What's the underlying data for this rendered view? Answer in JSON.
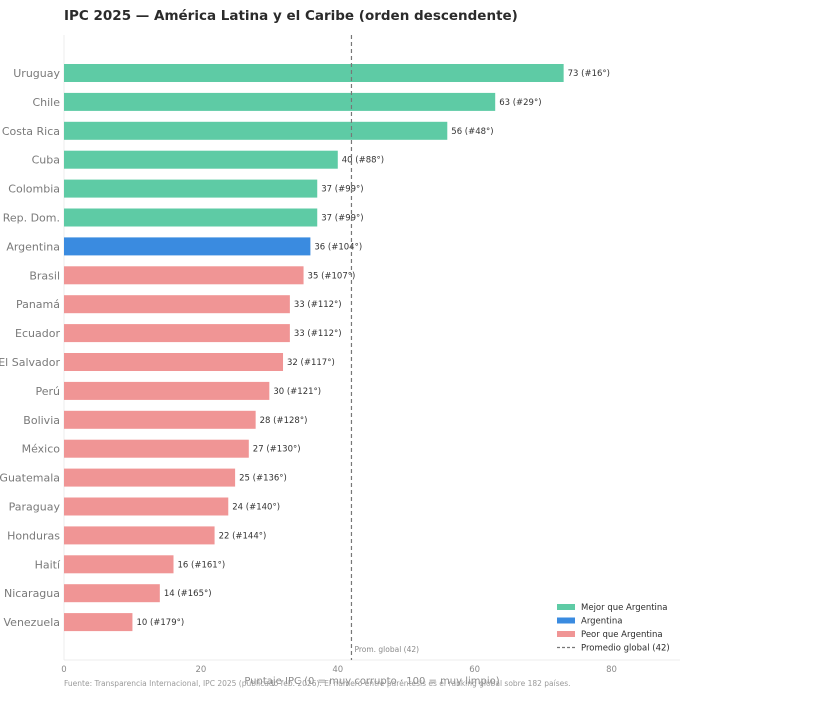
{
  "chart_data": {
    "type": "bar",
    "orientation": "horizontal",
    "title": "IPC 2025 — América Latina y el Caribe (orden descendente)",
    "xlabel": "Puntaje IPC (0 = muy corrupto · 100 = muy limpio)",
    "ylabel": "",
    "xlim": [
      0,
      90
    ],
    "xticks": [
      0,
      20,
      40,
      60,
      80
    ],
    "grid": false,
    "categories": [
      "Uruguay",
      "Chile",
      "Costa Rica",
      "Cuba",
      "Colombia",
      "Rep. Dom.",
      "Argentina",
      "Brasil",
      "Panamá",
      "Ecuador",
      "El Salvador",
      "Perú",
      "Bolivia",
      "México",
      "Guatemala",
      "Paraguay",
      "Honduras",
      "Haití",
      "Nicaragua",
      "Venezuela"
    ],
    "values": [
      73,
      63,
      56,
      40,
      37,
      37,
      36,
      35,
      33,
      33,
      32,
      30,
      28,
      27,
      25,
      24,
      22,
      16,
      14,
      10
    ],
    "ranks": [
      16,
      29,
      48,
      88,
      99,
      99,
      104,
      107,
      112,
      112,
      117,
      121,
      128,
      130,
      136,
      140,
      144,
      161,
      165,
      179
    ],
    "groups": [
      "better",
      "better",
      "better",
      "better",
      "better",
      "better",
      "argentina",
      "worse",
      "worse",
      "worse",
      "worse",
      "worse",
      "worse",
      "worse",
      "worse",
      "worse",
      "worse",
      "worse",
      "worse",
      "worse"
    ],
    "colors": {
      "better": "#5ecba5",
      "argentina": "#3a8be0",
      "worse": "#f09595",
      "reference_line": "#777777"
    },
    "reference_line": {
      "value": 42,
      "label": "Prom. global (42)",
      "style": "dashed"
    },
    "legend": {
      "position": "bottom-right",
      "entries": [
        {
          "label": "Mejor que Argentina",
          "kind": "patch",
          "group": "better"
        },
        {
          "label": "Argentina",
          "kind": "patch",
          "group": "argentina"
        },
        {
          "label": "Peor que Argentina",
          "kind": "patch",
          "group": "worse"
        },
        {
          "label": "Promedio global (42)",
          "kind": "dashed-line",
          "group": "reference_line"
        }
      ]
    },
    "caption": "Fuente: Transparencia Internacional, IPC 2025 (publicado feb. 2026). El número entre paréntesis es el ranking global sobre 182 países."
  }
}
